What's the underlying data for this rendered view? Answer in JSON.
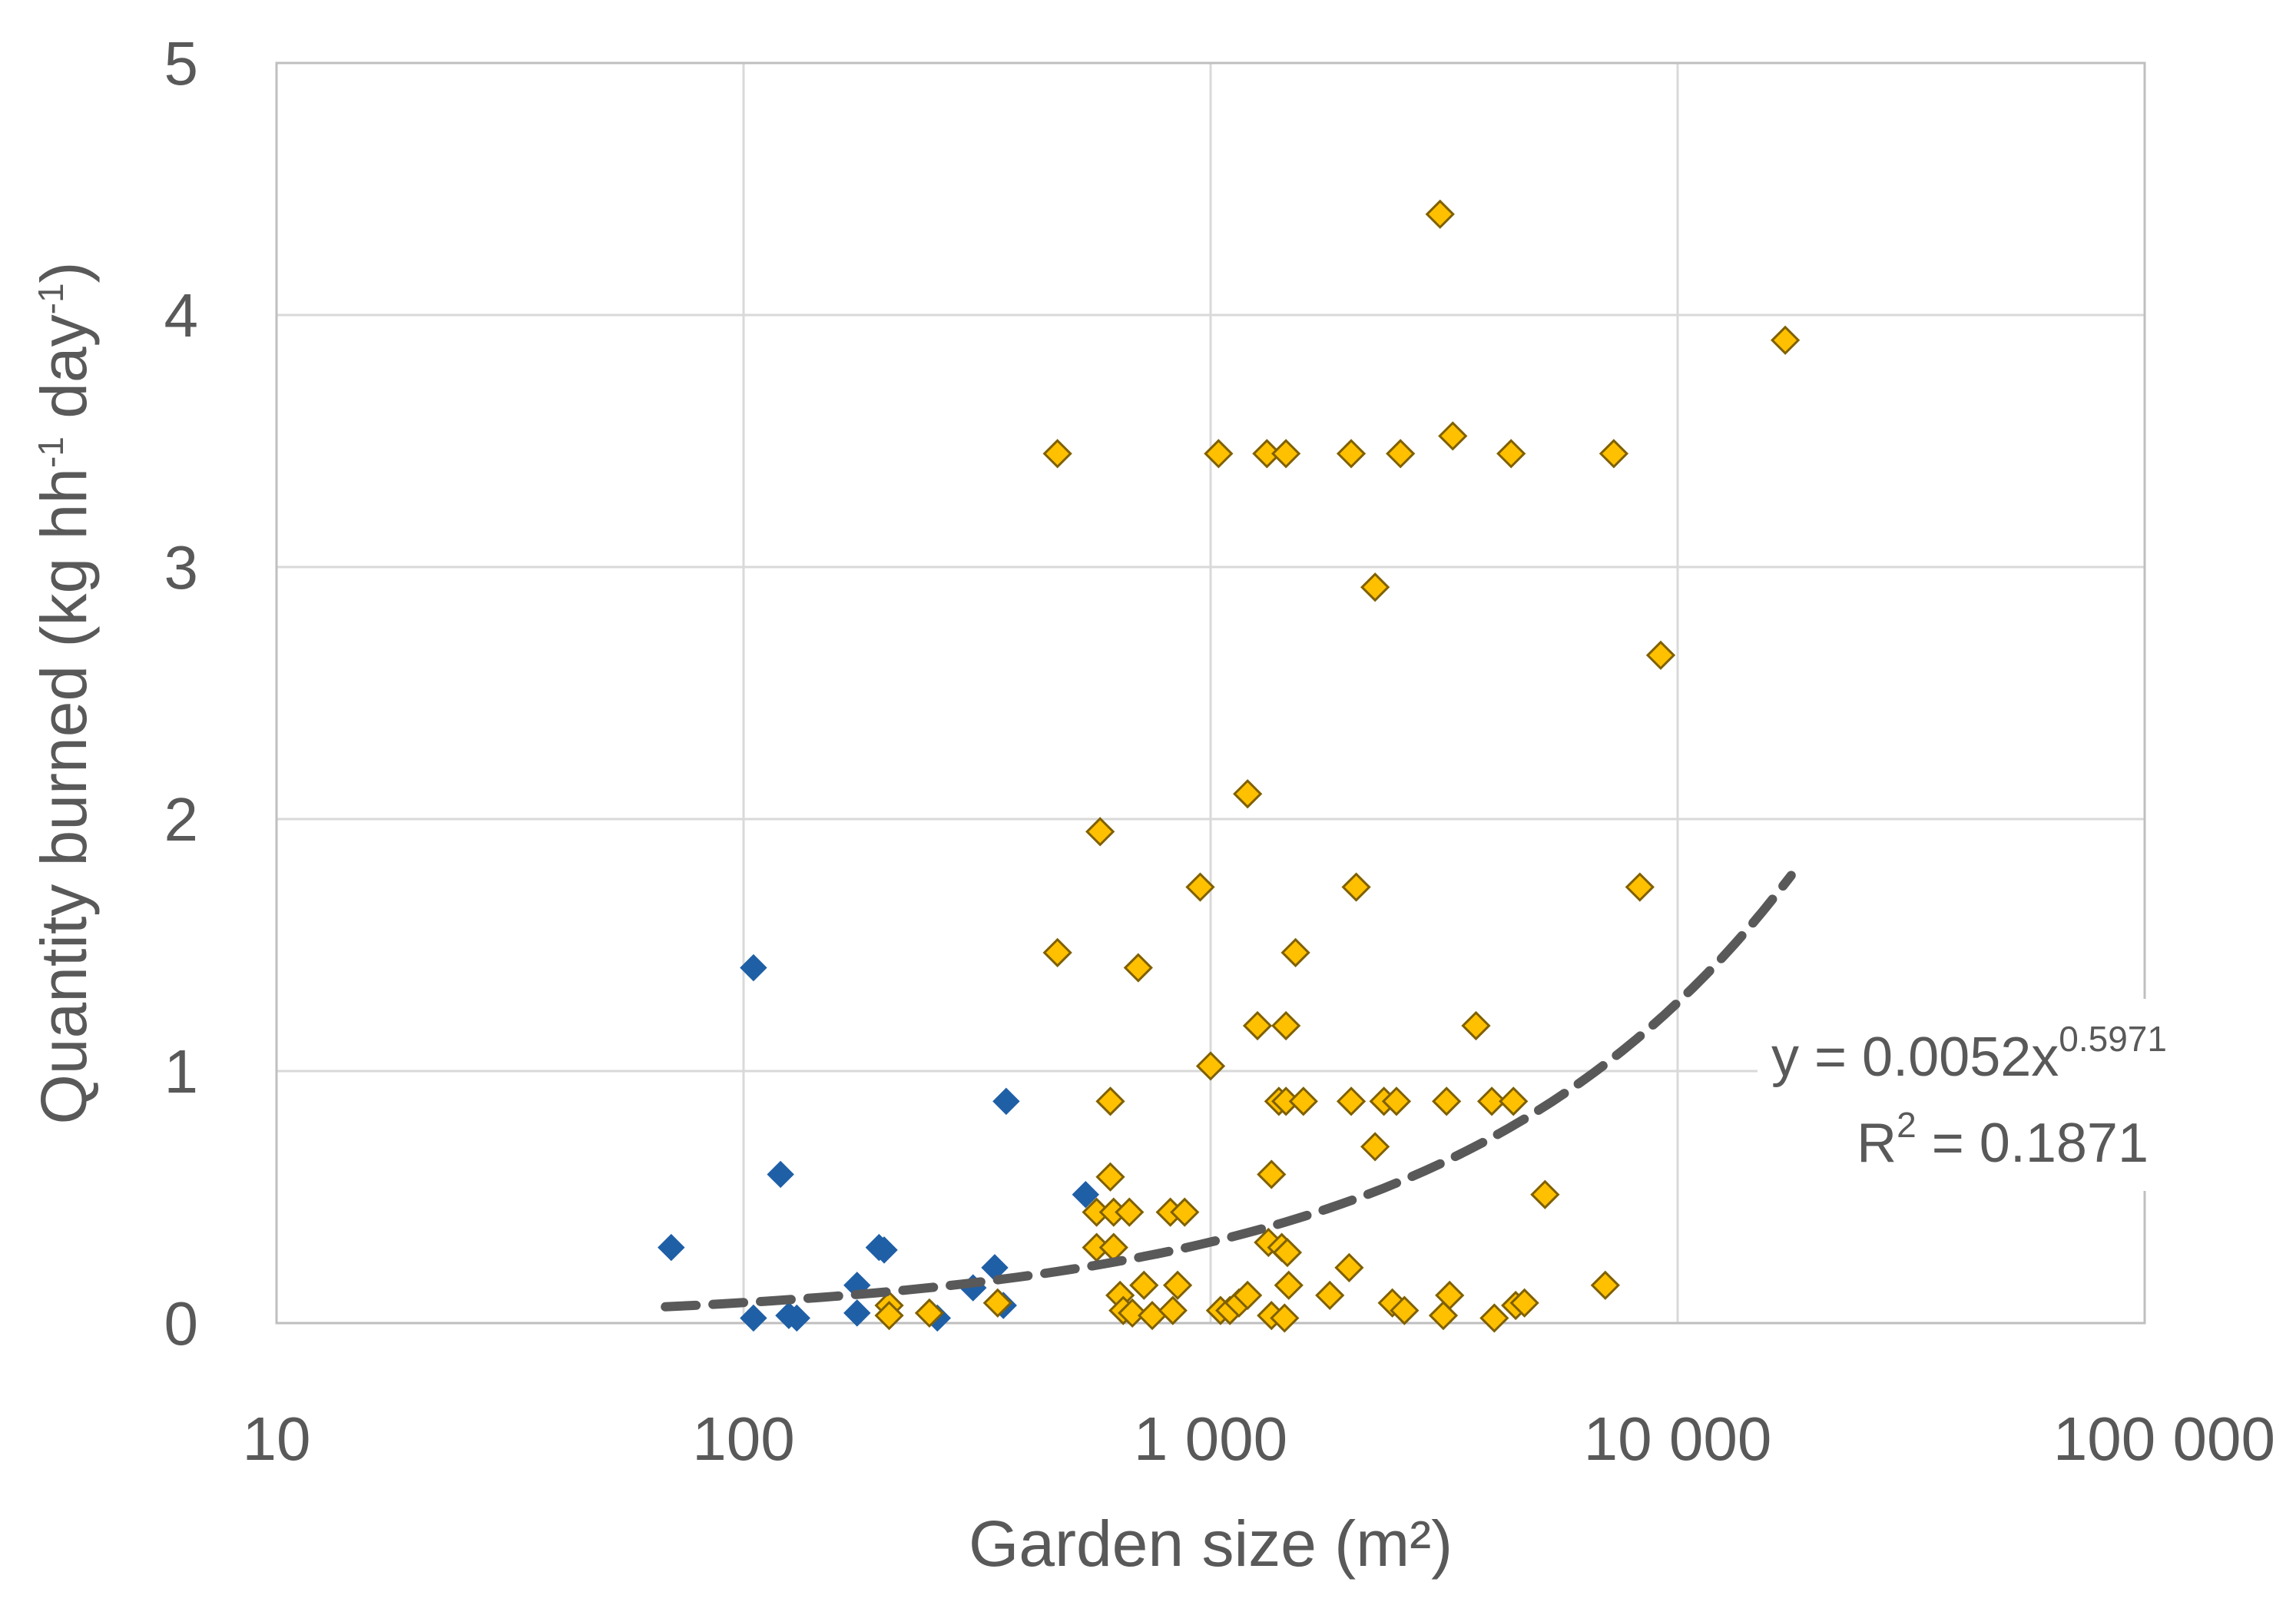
{
  "chart_data": {
    "type": "scatter",
    "title": "",
    "xlabel": "Garden size (m²)",
    "ylabel": {
      "base": "Quantity burned (kg hh",
      "sup1": "-1",
      "mid": " day",
      "sup2": "-1",
      "end": ")"
    },
    "xscale": "log",
    "xlim": [
      10,
      100000
    ],
    "ylim": [
      0,
      5
    ],
    "x_ticks": [
      10,
      100,
      1000,
      10000,
      100000
    ],
    "x_tick_labels": [
      "10",
      "100",
      "1 000",
      "10 000",
      "100 000"
    ],
    "y_ticks": [
      0,
      1,
      2,
      3,
      4,
      5
    ],
    "y_tick_labels": [
      "0",
      "1",
      "2",
      "3",
      "4",
      "5"
    ],
    "grid": true,
    "series": [
      {
        "name": "Blue diamonds",
        "color": "#1f5fa6",
        "marker": "diamond",
        "points": [
          [
            70,
            0.3
          ],
          [
            105,
            1.41
          ],
          [
            105,
            0.02
          ],
          [
            120,
            0.59
          ],
          [
            125,
            0.03
          ],
          [
            130,
            0.02
          ],
          [
            175,
            0.15
          ],
          [
            175,
            0.04
          ],
          [
            195,
            0.3
          ],
          [
            200,
            0.29
          ],
          [
            260,
            0.02
          ],
          [
            310,
            0.14
          ],
          [
            345,
            0.22
          ],
          [
            360,
            0.07
          ],
          [
            365,
            0.88
          ],
          [
            540,
            0.51
          ]
        ]
      },
      {
        "name": "Yellow diamonds",
        "color": "#ffc000",
        "stroke": "#7f6000",
        "marker": "diamond",
        "points": [
          [
            470,
            3.45
          ],
          [
            470,
            1.47
          ],
          [
            205,
            0.07
          ],
          [
            205,
            0.03
          ],
          [
            250,
            0.04
          ],
          [
            350,
            0.08
          ],
          [
            580,
            1.95
          ],
          [
            570,
            0.44
          ],
          [
            570,
            0.3
          ],
          [
            610,
            0.88
          ],
          [
            610,
            0.58
          ],
          [
            620,
            0.44
          ],
          [
            620,
            0.3
          ],
          [
            640,
            0.11
          ],
          [
            650,
            0.05
          ],
          [
            670,
            0.44
          ],
          [
            680,
            0.04
          ],
          [
            700,
            1.41
          ],
          [
            720,
            0.15
          ],
          [
            750,
            0.03
          ],
          [
            820,
            0.44
          ],
          [
            850,
            0.15
          ],
          [
            880,
            0.44
          ],
          [
            830,
            0.05
          ],
          [
            950,
            1.73
          ],
          [
            1000,
            1.02
          ],
          [
            1040,
            3.45
          ],
          [
            1050,
            0.05
          ],
          [
            1100,
            0.05
          ],
          [
            1150,
            0.08
          ],
          [
            1200,
            2.1
          ],
          [
            1200,
            0.11
          ],
          [
            1260,
            1.18
          ],
          [
            1320,
            3.45
          ],
          [
            1330,
            0.32
          ],
          [
            1350,
            0.59
          ],
          [
            1350,
            0.03
          ],
          [
            1400,
            0.88
          ],
          [
            1420,
            0.3
          ],
          [
            1450,
            3.45
          ],
          [
            1450,
            1.18
          ],
          [
            1450,
            0.88
          ],
          [
            1460,
            0.28
          ],
          [
            1470,
            0.15
          ],
          [
            1440,
            0.02
          ],
          [
            1520,
            1.47
          ],
          [
            1580,
            0.88
          ],
          [
            1800,
            0.11
          ],
          [
            2000,
            3.45
          ],
          [
            2000,
            0.88
          ],
          [
            2050,
            1.73
          ],
          [
            1980,
            0.22
          ],
          [
            2250,
            2.92
          ],
          [
            2250,
            0.7
          ],
          [
            2350,
            0.88
          ],
          [
            2500,
            0.88
          ],
          [
            2550,
            3.45
          ],
          [
            2450,
            0.08
          ],
          [
            2600,
            0.05
          ],
          [
            3100,
            4.4
          ],
          [
            3200,
            0.88
          ],
          [
            3300,
            3.52
          ],
          [
            3250,
            0.11
          ],
          [
            3150,
            0.03
          ],
          [
            3700,
            1.18
          ],
          [
            4000,
            0.88
          ],
          [
            4050,
            0.02
          ],
          [
            4400,
            3.45
          ],
          [
            4450,
            0.88
          ],
          [
            4500,
            0.07
          ],
          [
            4700,
            0.08
          ],
          [
            5200,
            0.51
          ],
          [
            7300,
            3.45
          ],
          [
            7000,
            0.15
          ],
          [
            8300,
            1.73
          ],
          [
            9200,
            2.65
          ],
          [
            17000,
            3.9
          ]
        ]
      }
    ],
    "trendline": {
      "type": "power",
      "a": 0.0052,
      "b": 0.5971,
      "x_range": [
        68,
        17500
      ],
      "color": "#595959",
      "style": "dashed",
      "equation_text": {
        "prefix": "y = 0.0052x",
        "exponent": "0.5971",
        "r2_prefix": "R",
        "r2_sup": "2",
        "r2_value": " = 0.1871"
      }
    }
  }
}
